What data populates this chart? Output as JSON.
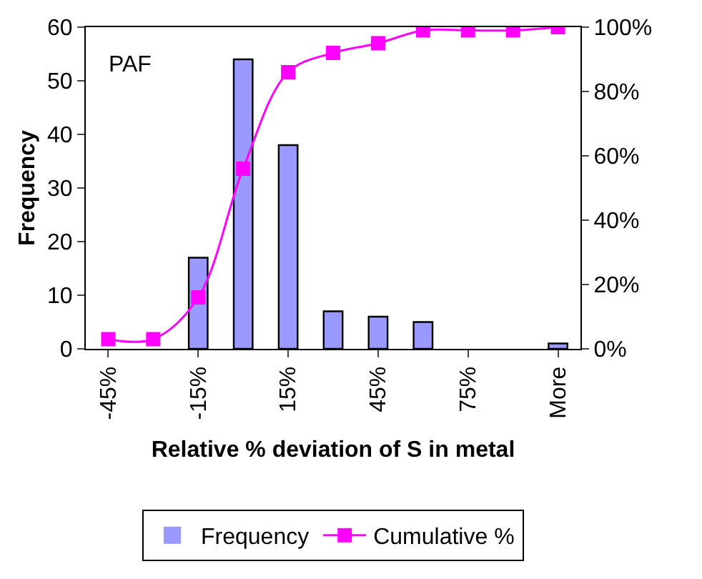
{
  "chart_data": {
    "type": "bar",
    "categories": [
      "-45%",
      null,
      "-15%",
      null,
      "15%",
      null,
      "45%",
      null,
      "75%",
      null,
      "More"
    ],
    "xlabel": "Relative % deviation of S in metal",
    "ylabel": "Frequency",
    "annotations": [
      "PAF"
    ],
    "series": [
      {
        "name": "Frequency",
        "color": "#9999ff",
        "values": [
          0,
          0,
          17,
          54,
          38,
          7,
          6,
          5,
          0,
          0,
          1
        ]
      },
      {
        "name": "Cumulative %",
        "type": "line",
        "axis": "y2",
        "color": "#ff00ff",
        "marker": "square",
        "values": [
          3,
          3,
          16,
          56,
          86,
          92,
          95,
          99,
          99,
          99,
          100
        ]
      }
    ],
    "ylim": [
      0,
      60
    ],
    "yticks": [
      0,
      10,
      20,
      30,
      40,
      50,
      60
    ],
    "y2lim": [
      0,
      100
    ],
    "y2ticks": [
      {
        "value": 0,
        "label": "0%"
      },
      {
        "value": 20,
        "label": "20%"
      },
      {
        "value": 40,
        "label": "40%"
      },
      {
        "value": 60,
        "label": "60%"
      },
      {
        "value": 80,
        "label": "80%"
      },
      {
        "value": 100,
        "label": "100%"
      }
    ],
    "legend": "bottom"
  }
}
